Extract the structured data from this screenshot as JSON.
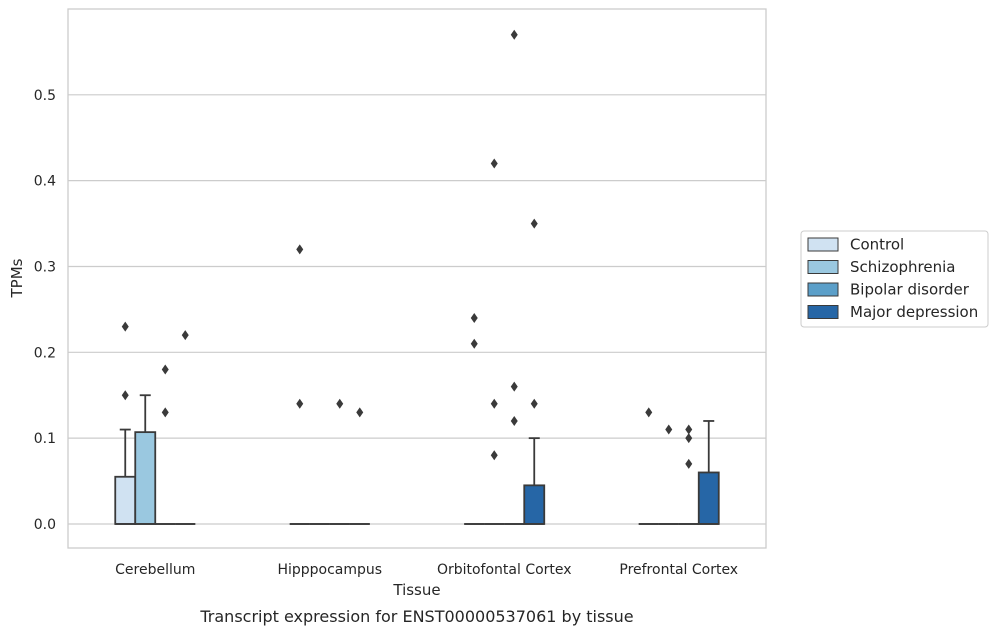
{
  "chart_data": {
    "type": "box",
    "xlabel": "Tissue",
    "ylabel": "TPMs",
    "caption": "Transcript expression for ENST00000537061 by tissue",
    "ylim": [
      -0.028,
      0.6
    ],
    "yticks": [
      0.0,
      0.1,
      0.2,
      0.3,
      0.4,
      0.5
    ],
    "ytick_labels": [
      "0.0",
      "0.1",
      "0.2",
      "0.3",
      "0.4",
      "0.5"
    ],
    "grid": "horizontal",
    "legend_position": "right",
    "categories": [
      "Cerebellum",
      "Hipppocampus",
      "Orbitofontal Cortex",
      "Prefrontal Cortex"
    ],
    "series": [
      {
        "name": "Control",
        "color": "#d0e2f2",
        "boxes": [
          {
            "q1": 0.0,
            "median": 0.0,
            "q3": 0.055,
            "whisker_low": 0.0,
            "whisker_high": 0.11,
            "outliers": [
              0.15,
              0.23
            ]
          },
          {
            "q1": 0.0,
            "median": 0.0,
            "q3": 0.0,
            "whisker_low": 0.0,
            "whisker_high": 0.0,
            "outliers": [
              0.14,
              0.32
            ]
          },
          {
            "q1": 0.0,
            "median": 0.0,
            "q3": 0.0,
            "whisker_low": 0.0,
            "whisker_high": 0.0,
            "outliers": [
              0.21,
              0.24
            ]
          },
          {
            "q1": 0.0,
            "median": 0.0,
            "q3": 0.0,
            "whisker_low": 0.0,
            "whisker_high": 0.0,
            "outliers": [
              0.13
            ]
          }
        ]
      },
      {
        "name": "Schizophrenia",
        "color": "#9ac8e0",
        "boxes": [
          {
            "q1": 0.0,
            "median": 0.0,
            "q3": 0.107,
            "whisker_low": 0.0,
            "whisker_high": 0.15,
            "outliers": []
          },
          {
            "q1": 0.0,
            "median": 0.0,
            "q3": 0.0,
            "whisker_low": 0.0,
            "whisker_high": 0.0,
            "outliers": []
          },
          {
            "q1": 0.0,
            "median": 0.0,
            "q3": 0.0,
            "whisker_low": 0.0,
            "whisker_high": 0.0,
            "outliers": [
              0.08,
              0.14,
              0.42
            ]
          },
          {
            "q1": 0.0,
            "median": 0.0,
            "q3": 0.0,
            "whisker_low": 0.0,
            "whisker_high": 0.0,
            "outliers": [
              0.11
            ]
          }
        ]
      },
      {
        "name": "Bipolar disorder",
        "color": "#5b9fc9",
        "boxes": [
          {
            "q1": 0.0,
            "median": 0.0,
            "q3": 0.0,
            "whisker_low": 0.0,
            "whisker_high": 0.0,
            "outliers": [
              0.13,
              0.18
            ]
          },
          {
            "q1": 0.0,
            "median": 0.0,
            "q3": 0.0,
            "whisker_low": 0.0,
            "whisker_high": 0.0,
            "outliers": [
              0.14
            ]
          },
          {
            "q1": 0.0,
            "median": 0.0,
            "q3": 0.0,
            "whisker_low": 0.0,
            "whisker_high": 0.0,
            "outliers": [
              0.12,
              0.16,
              0.57
            ]
          },
          {
            "q1": 0.0,
            "median": 0.0,
            "q3": 0.0,
            "whisker_low": 0.0,
            "whisker_high": 0.0,
            "outliers": [
              0.07,
              0.1,
              0.11
            ]
          }
        ]
      },
      {
        "name": "Major depression",
        "color": "#2666a6",
        "boxes": [
          {
            "q1": 0.0,
            "median": 0.0,
            "q3": 0.0,
            "whisker_low": 0.0,
            "whisker_high": 0.0,
            "outliers": [
              0.22
            ]
          },
          {
            "q1": 0.0,
            "median": 0.0,
            "q3": 0.0,
            "whisker_low": 0.0,
            "whisker_high": 0.0,
            "outliers": [
              0.13
            ]
          },
          {
            "q1": 0.0,
            "median": 0.0,
            "q3": 0.045,
            "whisker_low": 0.0,
            "whisker_high": 0.1,
            "outliers": [
              0.14,
              0.35
            ]
          },
          {
            "q1": 0.0,
            "median": 0.0,
            "q3": 0.06,
            "whisker_low": 0.0,
            "whisker_high": 0.12,
            "outliers": []
          }
        ]
      }
    ]
  }
}
